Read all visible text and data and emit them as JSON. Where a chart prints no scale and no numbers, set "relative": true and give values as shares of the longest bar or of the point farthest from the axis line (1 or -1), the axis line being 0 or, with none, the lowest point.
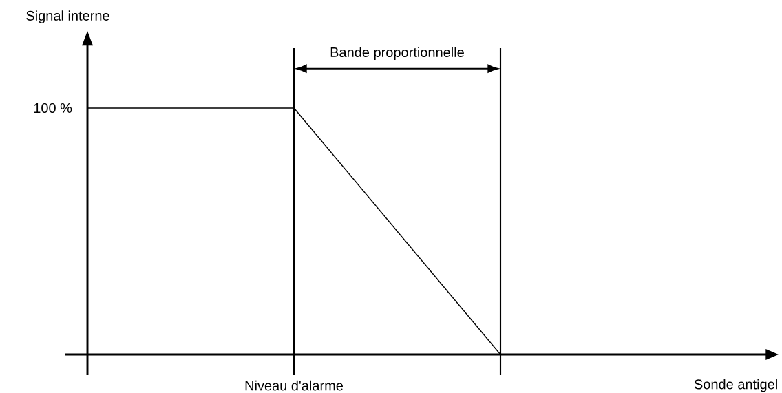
{
  "chart_data": {
    "type": "line",
    "relative": true,
    "categories": [
      null,
      null,
      null
    ],
    "series": [
      {
        "color": "#000000",
        "values": [
          1,
          1,
          0
        ]
      }
    ],
    "annotations": [
      "Signal interne",
      "100 %",
      "Bande proportionnelle",
      "Sonde antigel",
      "Niveau d'alarme"
    ]
  }
}
